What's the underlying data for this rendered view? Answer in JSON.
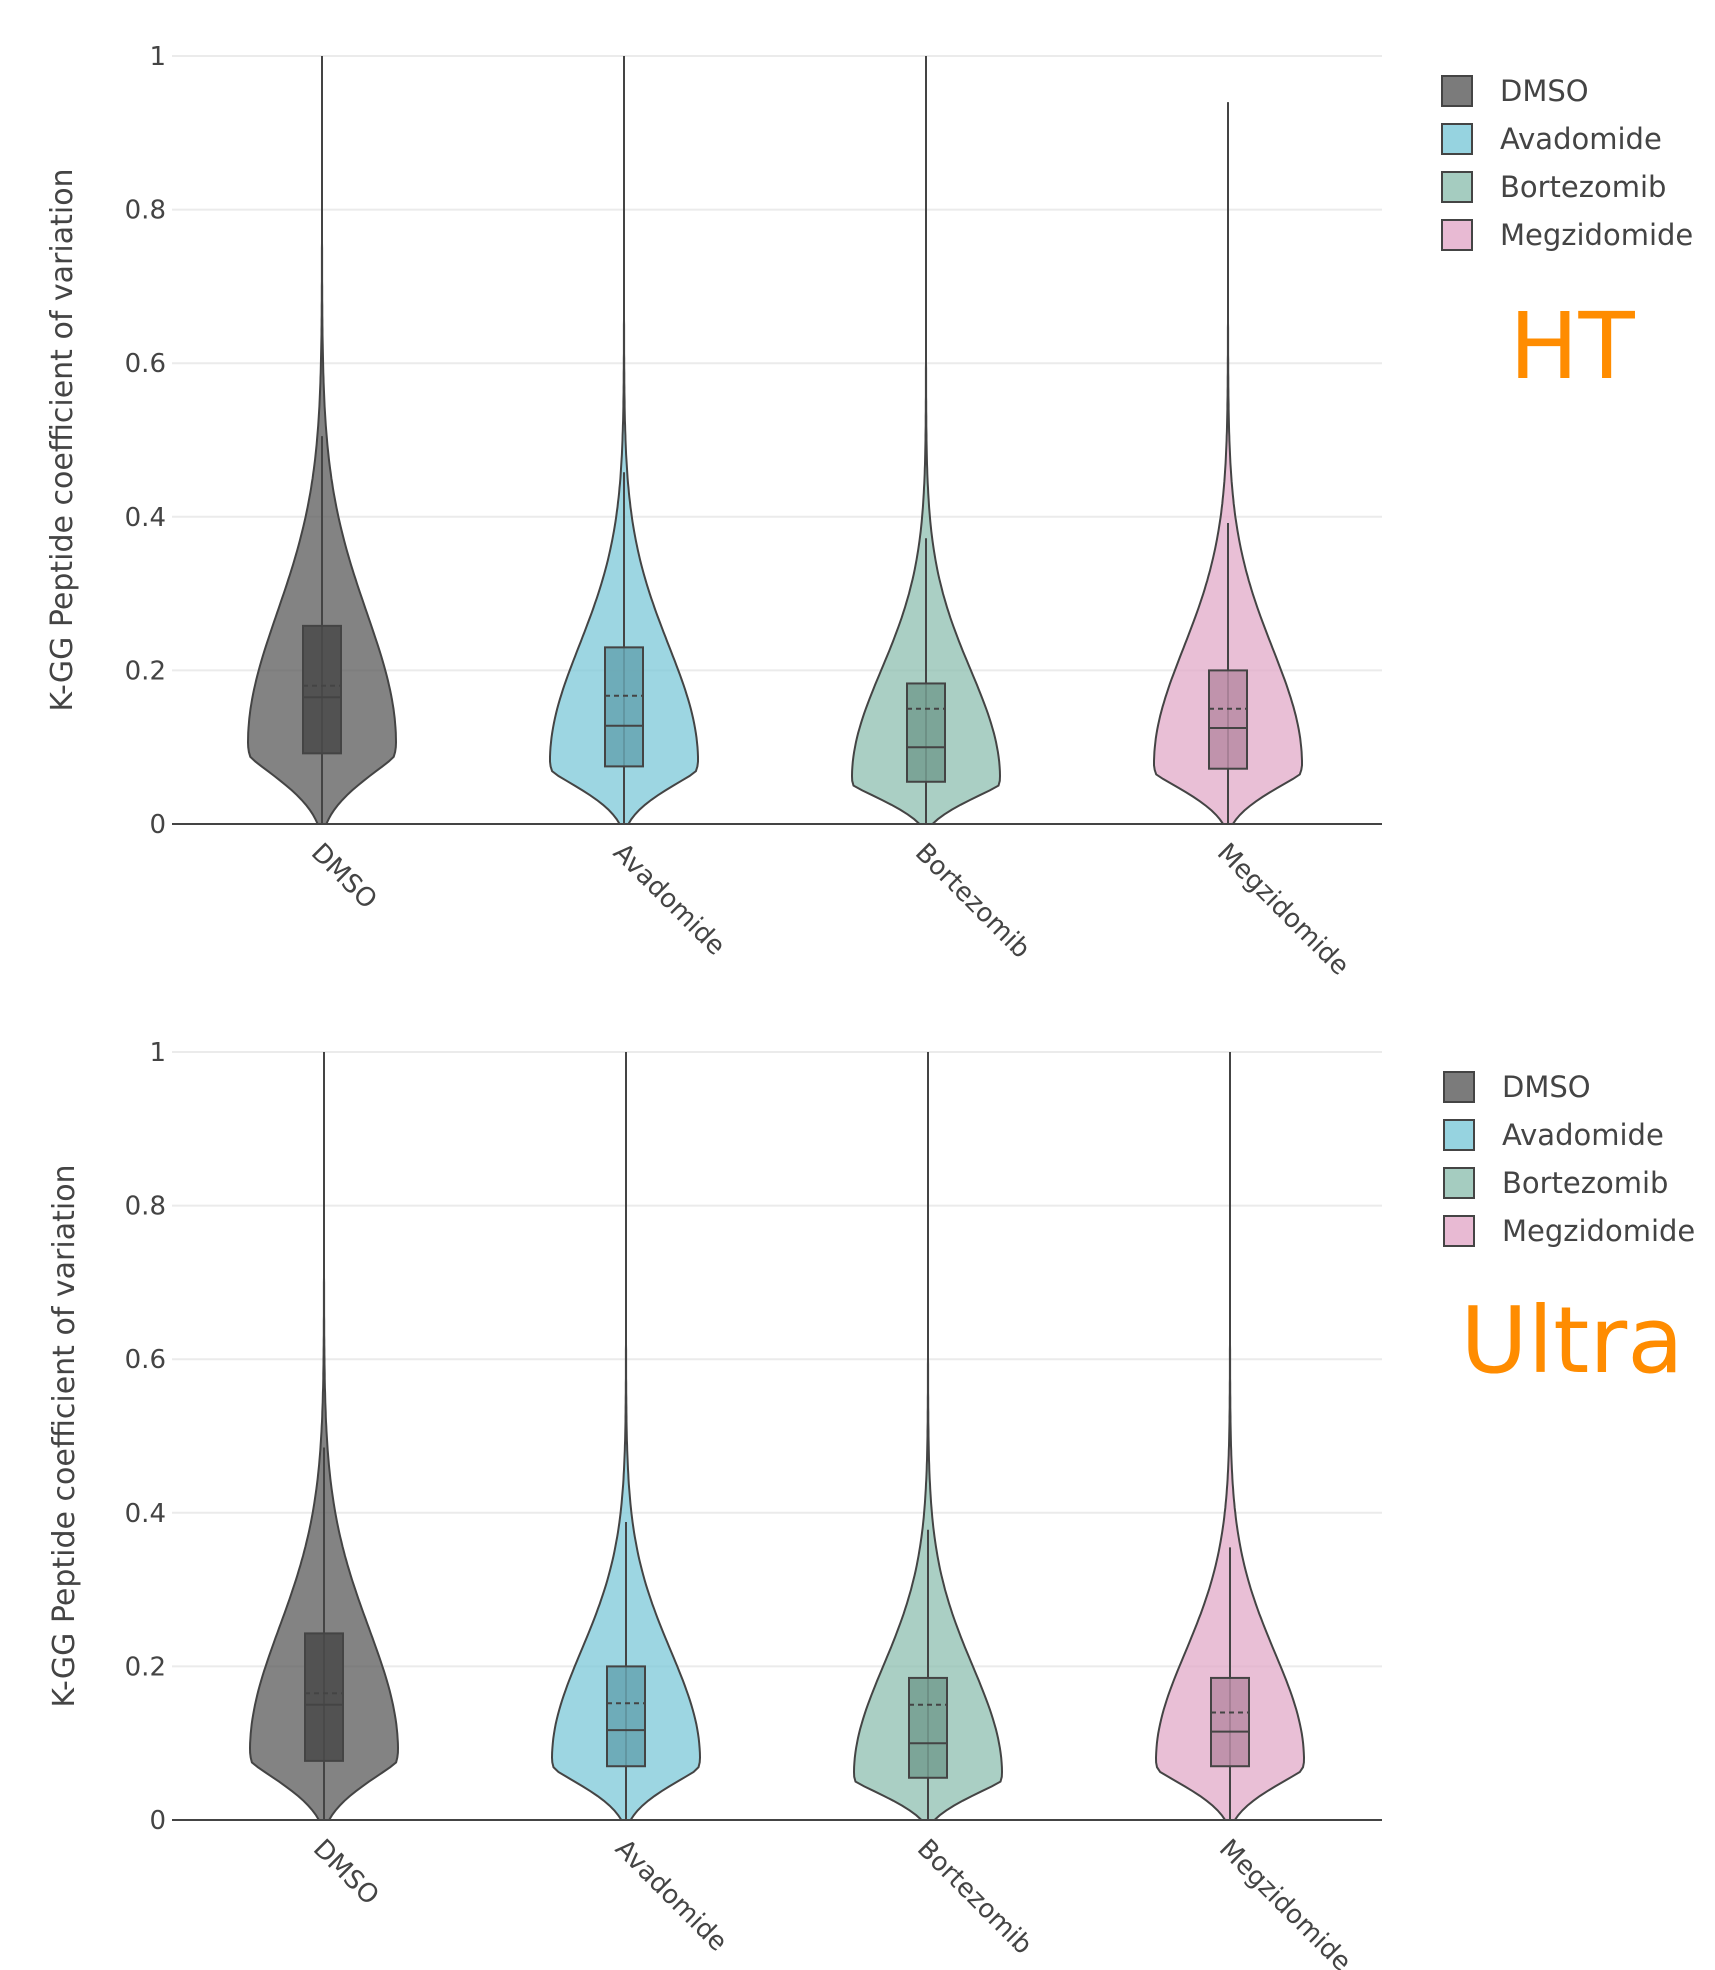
{
  "chart_data": [
    {
      "type": "violin",
      "panel_label": "HT",
      "panel_label_color": "#FF8C00",
      "ylabel": "K-GG Peptide coefficient of variation",
      "ylim": [
        0,
        1
      ],
      "yticks": [
        0,
        0.2,
        0.4,
        0.6,
        0.8,
        1
      ],
      "yticklabels": [
        "0",
        "0.2",
        "0.4",
        "0.6",
        "0.8",
        "1"
      ],
      "grid": true,
      "legend": "top-right",
      "categories": [
        "DMSO",
        "Avadomide",
        "Bortezomib",
        "Megzidomide"
      ],
      "series": [
        {
          "name": "DMSO",
          "color": "#5a5a5a",
          "median": 0.165,
          "mean": 0.18,
          "q1": 0.092,
          "q3": 0.258,
          "whisker_low": 0.0,
          "whisker_high": 0.505,
          "max": 1.0,
          "mode": 0.105,
          "spread_low": 0.07,
          "spread_high": 0.17
        },
        {
          "name": "Avadomide",
          "color": "#7cc8d8",
          "median": 0.128,
          "mean": 0.167,
          "q1": 0.075,
          "q3": 0.23,
          "whisker_low": 0.0,
          "whisker_high": 0.458,
          "max": 1.0,
          "mode": 0.082,
          "spread_low": 0.055,
          "spread_high": 0.15
        },
        {
          "name": "Bortezomib",
          "color": "#8ebfb0",
          "median": 0.1,
          "mean": 0.15,
          "q1": 0.055,
          "q3": 0.183,
          "whisker_low": 0.0,
          "whisker_high": 0.372,
          "max": 1.0,
          "mode": 0.06,
          "spread_low": 0.05,
          "spread_high": 0.14
        },
        {
          "name": "Megzidomide",
          "color": "#e2a9c8",
          "median": 0.125,
          "mean": 0.15,
          "q1": 0.072,
          "q3": 0.2,
          "whisker_low": 0.0,
          "whisker_high": 0.392,
          "max": 0.94,
          "mode": 0.078,
          "spread_low": 0.055,
          "spread_high": 0.15
        }
      ]
    },
    {
      "type": "violin",
      "panel_label": "Ultra",
      "panel_label_color": "#FF8C00",
      "ylabel": "K-GG Peptide coefficient of variation",
      "ylim": [
        0,
        1
      ],
      "yticks": [
        0,
        0.2,
        0.4,
        0.6,
        0.8,
        1
      ],
      "yticklabels": [
        "0",
        "0.2",
        "0.4",
        "0.6",
        "0.8",
        "1"
      ],
      "grid": true,
      "legend": "top-right",
      "categories": [
        "DMSO",
        "Avadomide",
        "Bortezomib",
        "Megzidomide"
      ],
      "series": [
        {
          "name": "DMSO",
          "color": "#5a5a5a",
          "median": 0.15,
          "mean": 0.165,
          "q1": 0.077,
          "q3": 0.243,
          "whisker_low": 0.0,
          "whisker_high": 0.485,
          "max": 1.0,
          "mode": 0.09,
          "spread_low": 0.065,
          "spread_high": 0.16
        },
        {
          "name": "Avadomide",
          "color": "#7cc8d8",
          "median": 0.117,
          "mean": 0.152,
          "q1": 0.07,
          "q3": 0.2,
          "whisker_low": 0.0,
          "whisker_high": 0.388,
          "max": 1.0,
          "mode": 0.08,
          "spread_low": 0.055,
          "spread_high": 0.14
        },
        {
          "name": "Bortezomib",
          "color": "#8ebfb0",
          "median": 0.1,
          "mean": 0.15,
          "q1": 0.055,
          "q3": 0.185,
          "whisker_low": 0.0,
          "whisker_high": 0.378,
          "max": 1.0,
          "mode": 0.06,
          "spread_low": 0.05,
          "spread_high": 0.14
        },
        {
          "name": "Megzidomide",
          "color": "#e2a9c8",
          "median": 0.115,
          "mean": 0.14,
          "q1": 0.07,
          "q3": 0.185,
          "whisker_low": 0.0,
          "whisker_high": 0.355,
          "max": 1.0,
          "mode": 0.078,
          "spread_low": 0.055,
          "spread_high": 0.14
        }
      ]
    }
  ]
}
